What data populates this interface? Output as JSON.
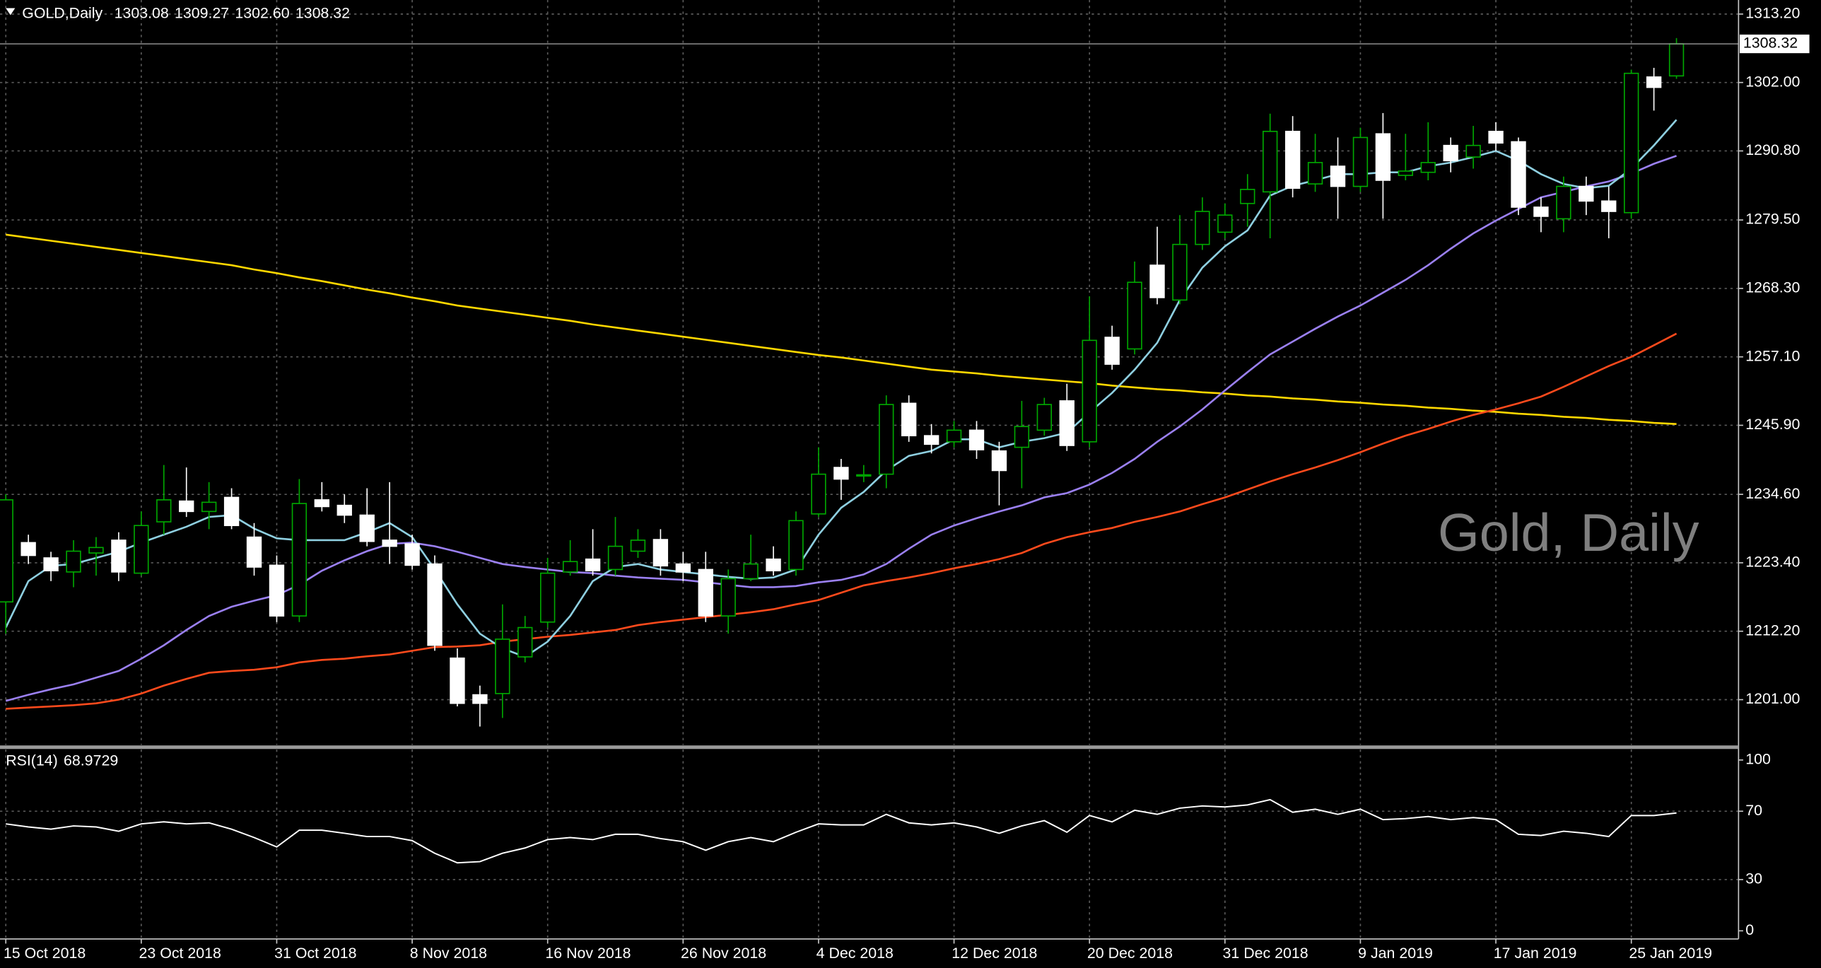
{
  "chart_data": [
    {
      "type": "candlestick",
      "title": "GOLD,Daily",
      "ohlc_labels": [
        "1303.08",
        "1309.27",
        "1302.60",
        "1308.32"
      ],
      "watermark": "Gold, Daily",
      "categories": [
        "15 Oct 2018",
        null,
        null,
        null,
        null,
        null,
        "23 Oct 2018",
        null,
        null,
        null,
        null,
        null,
        "31 Oct 2018",
        null,
        null,
        null,
        null,
        null,
        "8 Nov 2018",
        null,
        null,
        null,
        null,
        null,
        "16 Nov 2018",
        null,
        null,
        null,
        null,
        null,
        "26 Nov 2018",
        null,
        null,
        null,
        null,
        null,
        "4 Dec 2018",
        null,
        null,
        null,
        null,
        null,
        "12 Dec 2018",
        null,
        null,
        null,
        null,
        null,
        "20 Dec 2018",
        null,
        null,
        null,
        null,
        null,
        "31 Dec 2018",
        null,
        null,
        null,
        null,
        null,
        "9 Jan 2019",
        null,
        null,
        null,
        null,
        null,
        "17 Jan 2019",
        null,
        null,
        null,
        null,
        null,
        "25 Jan 2019",
        null,
        null
      ],
      "open": [
        1217.0,
        1226.7,
        1224.2,
        1221.9,
        1225.0,
        1227.1,
        1221.7,
        1230.1,
        1233.5,
        1231.8,
        1234.1,
        1227.6,
        1223.0,
        1214.7,
        1233.7,
        1232.8,
        1231.2,
        1227.1,
        1226.5,
        1223.2,
        1207.8,
        1201.8,
        1202.0,
        1208.0,
        1213.7,
        1221.9,
        1224.0,
        1222.3,
        1225.3,
        1227.2,
        1223.2,
        1222.3,
        1214.7,
        1220.8,
        1224.0,
        1222.3,
        1231.4,
        1239.0,
        1237.6,
        1237.9,
        1249.5,
        1244.2,
        1243.2,
        1245.1,
        1241.7,
        1242.3,
        1245.1,
        1249.9,
        1243.2,
        1260.3,
        1258.4,
        1272.1,
        1266.4,
        1275.5,
        1277.5,
        1282.2,
        1284.1,
        1294.0,
        1285.4,
        1288.3,
        1285.0,
        1293.6,
        1286.8,
        1287.3,
        1291.7,
        1289.8,
        1294.0,
        1292.3,
        1281.6,
        1279.7,
        1285.0,
        1282.6,
        1280.7,
        1302.9,
        1303.08
      ],
      "high": [
        1234.6,
        1228.0,
        1225.2,
        1227.1,
        1227.6,
        1228.4,
        1231.8,
        1239.4,
        1239.0,
        1236.6,
        1235.6,
        1229.9,
        1224.6,
        1237.1,
        1236.6,
        1234.6,
        1235.6,
        1236.6,
        1228.0,
        1224.6,
        1209.4,
        1203.3,
        1216.6,
        1214.7,
        1224.2,
        1227.1,
        1228.9,
        1230.9,
        1228.9,
        1228.9,
        1225.2,
        1225.2,
        1222.3,
        1228.0,
        1226.1,
        1231.8,
        1242.3,
        1240.4,
        1239.4,
        1250.8,
        1250.8,
        1246.1,
        1246.6,
        1246.6,
        1243.2,
        1249.9,
        1250.4,
        1252.7,
        1267.0,
        1262.2,
        1272.7,
        1278.4,
        1280.3,
        1283.2,
        1282.2,
        1287.0,
        1296.9,
        1296.5,
        1293.6,
        1293.0,
        1294.6,
        1297.0,
        1293.6,
        1295.5,
        1293.0,
        1294.9,
        1295.5,
        1293.0,
        1283.2,
        1286.6,
        1286.6,
        1285.0,
        1304.1,
        1304.4,
        1309.27
      ],
      "low": [
        1211.8,
        1223.2,
        1220.4,
        1219.4,
        1221.3,
        1220.4,
        1221.3,
        1228.0,
        1230.9,
        1228.9,
        1228.9,
        1221.3,
        1213.7,
        1213.7,
        1231.8,
        1229.9,
        1226.1,
        1223.2,
        1222.3,
        1209.0,
        1199.9,
        1196.6,
        1198.0,
        1207.1,
        1212.8,
        1221.3,
        1221.3,
        1221.3,
        1224.2,
        1221.3,
        1220.4,
        1213.7,
        1211.8,
        1220.4,
        1221.3,
        1221.3,
        1230.9,
        1233.7,
        1236.6,
        1235.6,
        1243.2,
        1241.3,
        1242.3,
        1240.4,
        1232.8,
        1235.6,
        1244.2,
        1241.7,
        1242.3,
        1255.0,
        1257.5,
        1265.7,
        1265.7,
        1274.6,
        1276.5,
        1278.4,
        1276.5,
        1283.2,
        1284.1,
        1279.7,
        1284.1,
        1279.7,
        1286.0,
        1286.0,
        1287.3,
        1287.9,
        1290.8,
        1280.3,
        1277.5,
        1277.5,
        1280.3,
        1276.5,
        1279.7,
        1297.4,
        1302.6
      ],
      "close": [
        1233.7,
        1224.6,
        1222.1,
        1225.3,
        1225.9,
        1221.9,
        1229.5,
        1233.7,
        1231.8,
        1233.3,
        1229.5,
        1222.7,
        1214.7,
        1233.1,
        1232.6,
        1231.2,
        1226.9,
        1226.1,
        1223.0,
        1209.9,
        1200.4,
        1200.4,
        1210.9,
        1212.8,
        1221.7,
        1223.6,
        1222.1,
        1226.1,
        1227.1,
        1222.9,
        1221.9,
        1214.7,
        1220.8,
        1223.2,
        1222.1,
        1230.3,
        1237.9,
        1237.1,
        1237.8,
        1249.3,
        1244.2,
        1242.8,
        1245.1,
        1241.9,
        1238.5,
        1245.7,
        1249.3,
        1242.6,
        1259.8,
        1255.9,
        1269.3,
        1266.8,
        1275.5,
        1280.9,
        1280.3,
        1284.5,
        1294.0,
        1284.7,
        1288.9,
        1285.0,
        1293.0,
        1286.0,
        1287.5,
        1288.9,
        1289.2,
        1291.7,
        1292.1,
        1281.6,
        1280.1,
        1285.0,
        1282.6,
        1280.9,
        1303.5,
        1301.2,
        1308.32
      ],
      "up_color": "#00a800",
      "down_color": "#ffffff",
      "series": [
        {
          "color": "#ffd700",
          "values": [
            1277.1,
            1276.6,
            1276.1,
            1275.6,
            1275.1,
            1274.6,
            1274.1,
            1273.6,
            1273.1,
            1272.6,
            1272.1,
            1271.4,
            1270.8,
            1270.1,
            1269.5,
            1268.8,
            1268.1,
            1267.5,
            1266.8,
            1266.2,
            1265.5,
            1265.0,
            1264.5,
            1264.0,
            1263.5,
            1263.0,
            1262.4,
            1261.9,
            1261.4,
            1260.9,
            1260.4,
            1259.9,
            1259.4,
            1258.9,
            1258.4,
            1257.9,
            1257.4,
            1257.0,
            1256.5,
            1256.0,
            1255.5,
            1255.0,
            1254.7,
            1254.4,
            1254.0,
            1253.7,
            1253.4,
            1253.1,
            1252.8,
            1252.4,
            1252.1,
            1251.8,
            1251.6,
            1251.3,
            1251.1,
            1250.8,
            1250.6,
            1250.3,
            1250.1,
            1249.8,
            1249.6,
            1249.3,
            1249.1,
            1248.8,
            1248.6,
            1248.3,
            1248.1,
            1247.8,
            1247.6,
            1247.3,
            1247.1,
            1246.8,
            1246.6,
            1246.3,
            1246.1
          ]
        },
        {
          "color": "#ff4a1c",
          "values": [
            1199.5,
            1199.7,
            1199.9,
            1200.1,
            1200.4,
            1201.0,
            1202.0,
            1203.3,
            1204.4,
            1205.4,
            1205.7,
            1205.9,
            1206.3,
            1207.1,
            1207.5,
            1207.7,
            1208.1,
            1208.4,
            1209.0,
            1209.6,
            1209.7,
            1209.9,
            1210.5,
            1210.9,
            1211.3,
            1211.6,
            1212.0,
            1212.4,
            1213.2,
            1213.7,
            1214.1,
            1214.5,
            1214.9,
            1215.3,
            1215.8,
            1216.6,
            1217.3,
            1218.5,
            1219.7,
            1220.4,
            1221.0,
            1221.7,
            1222.5,
            1223.2,
            1224.0,
            1225.0,
            1226.5,
            1227.6,
            1228.4,
            1229.1,
            1230.1,
            1230.9,
            1231.8,
            1233.0,
            1234.1,
            1235.4,
            1236.7,
            1237.9,
            1239.0,
            1240.2,
            1241.5,
            1242.9,
            1244.2,
            1245.3,
            1246.5,
            1247.6,
            1248.5,
            1249.5,
            1250.6,
            1252.2,
            1253.9,
            1255.6,
            1257.1,
            1259.0,
            1260.9
          ]
        },
        {
          "color": "#9b80f2",
          "values": [
            1200.8,
            1201.8,
            1202.7,
            1203.5,
            1204.6,
            1205.7,
            1207.7,
            1209.9,
            1212.4,
            1214.7,
            1216.2,
            1217.2,
            1218.1,
            1219.8,
            1222.1,
            1223.8,
            1225.3,
            1226.5,
            1226.7,
            1226.1,
            1225.2,
            1224.2,
            1223.2,
            1222.7,
            1222.3,
            1221.9,
            1221.7,
            1221.3,
            1221.0,
            1220.8,
            1220.6,
            1220.2,
            1219.8,
            1219.4,
            1219.4,
            1219.6,
            1220.2,
            1220.6,
            1221.5,
            1223.2,
            1225.7,
            1228.0,
            1229.5,
            1230.7,
            1231.8,
            1232.8,
            1234.1,
            1234.8,
            1236.2,
            1238.1,
            1240.4,
            1243.2,
            1245.7,
            1248.5,
            1251.6,
            1254.6,
            1257.5,
            1259.6,
            1261.7,
            1263.7,
            1265.5,
            1267.6,
            1269.7,
            1272.1,
            1274.8,
            1277.3,
            1279.4,
            1281.3,
            1283.2,
            1284.1,
            1285.0,
            1285.8,
            1287.1,
            1288.7,
            1290.0
          ]
        },
        {
          "color": "#8ecfe0",
          "values": [
            1212.8,
            1220.4,
            1222.9,
            1223.2,
            1224.2,
            1225.2,
            1226.7,
            1228.0,
            1229.3,
            1230.9,
            1231.2,
            1229.0,
            1227.4,
            1227.1,
            1227.1,
            1227.1,
            1228.4,
            1229.9,
            1227.6,
            1222.3,
            1216.6,
            1211.8,
            1209.4,
            1208.0,
            1210.5,
            1214.7,
            1220.4,
            1222.7,
            1223.2,
            1222.3,
            1221.9,
            1221.5,
            1221.1,
            1220.8,
            1221.0,
            1222.3,
            1228.0,
            1232.4,
            1235.0,
            1238.5,
            1240.9,
            1241.7,
            1243.6,
            1243.6,
            1242.3,
            1243.2,
            1243.8,
            1244.7,
            1248.0,
            1251.2,
            1255.0,
            1259.4,
            1266.4,
            1271.7,
            1275.2,
            1277.8,
            1283.5,
            1285.1,
            1286.0,
            1287.0,
            1287.0,
            1287.3,
            1287.3,
            1288.3,
            1288.9,
            1289.8,
            1290.8,
            1289.2,
            1287.0,
            1285.4,
            1284.7,
            1285.1,
            1287.9,
            1291.7,
            1295.9
          ]
        }
      ],
      "ylim": [
        1193.6,
        1315.5
      ],
      "yticks": [
        {
          "value": 1201.0,
          "label": "1201.00"
        },
        {
          "value": 1212.2,
          "label": "1212.20"
        },
        {
          "value": 1223.4,
          "label": "1223.40"
        },
        {
          "value": 1234.6,
          "label": "1234.60"
        },
        {
          "value": 1245.9,
          "label": "1245.90"
        },
        {
          "value": 1257.1,
          "label": "1257.10"
        },
        {
          "value": 1268.3,
          "label": "1268.30"
        },
        {
          "value": 1279.5,
          "label": "1279.50"
        },
        {
          "value": 1290.8,
          "label": "1290.80"
        },
        {
          "value": 1302.0,
          "label": "1302.00"
        },
        {
          "value": 1313.2,
          "label": "1313.20"
        }
      ],
      "grid": true
    },
    {
      "type": "line",
      "title": "RSI(14)",
      "series": [
        {
          "color": "#ffffff",
          "values": [
            62.6,
            60.8,
            59.5,
            61.4,
            60.8,
            58.3,
            62.6,
            63.8,
            62.6,
            63.2,
            59.5,
            54.6,
            49.1,
            58.9,
            58.9,
            57.1,
            55.2,
            55.2,
            52.8,
            45.4,
            39.8,
            40.5,
            45.4,
            48.5,
            53.4,
            54.6,
            53.4,
            56.5,
            56.5,
            54.0,
            52.2,
            47.2,
            52.2,
            54.6,
            52.2,
            57.7,
            62.6,
            62.0,
            62.0,
            68.2,
            63.2,
            62.0,
            63.2,
            60.8,
            57.1,
            61.4,
            64.5,
            57.7,
            67.5,
            63.8,
            70.6,
            68.2,
            71.8,
            73.1,
            72.5,
            73.7,
            76.8,
            69.4,
            71.2,
            68.2,
            71.2,
            65.1,
            65.7,
            66.9,
            65.1,
            66.3,
            65.1,
            56.5,
            55.8,
            58.3,
            57.1,
            55.2,
            67.5,
            67.5,
            68.9729
          ]
        }
      ],
      "ylim": [
        0,
        100
      ],
      "yticks": [
        0,
        30,
        70,
        100
      ],
      "grid": true
    }
  ]
}
